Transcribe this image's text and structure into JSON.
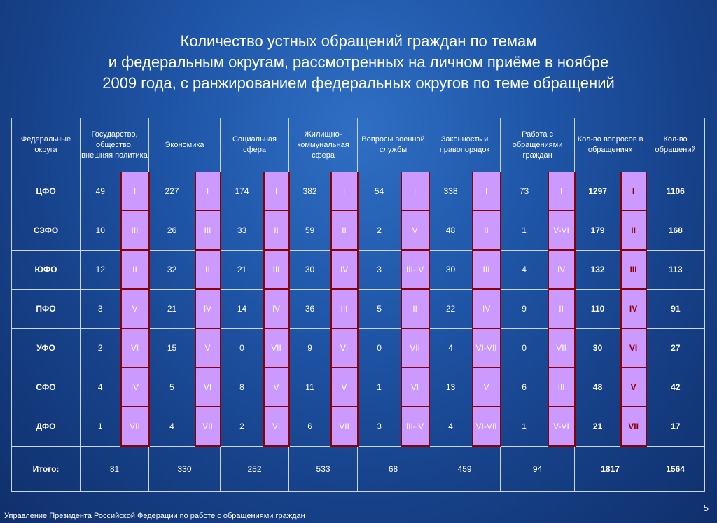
{
  "title": {
    "line1": "Количество устных обращений граждан по темам",
    "line2": "и федеральным округам, рассмотренных на личном приёме в ноябре",
    "line3": "2009 года, с ранжированием федеральных округов по теме обращений"
  },
  "headers": {
    "districts": "Федеральные округа",
    "state": "Государство, общество, внешняя политика",
    "economy": "Экономика",
    "social": "Социальная сфера",
    "housing": "Жилищно-коммунальная сфера",
    "military": "Вопросы военной службы",
    "law": "Законность и правопорядок",
    "work": "Работа с обращениями граждан",
    "questions": "Кол-во вопросов в обращениях",
    "appeals": "Кол-во обращений"
  },
  "rows": [
    {
      "district": "ЦФО",
      "c1": "49",
      "r1": "I",
      "c2": "227",
      "r2": "I",
      "c3": "174",
      "r3": "I",
      "c4": "382",
      "r4": "I",
      "c5": "54",
      "r5": "I",
      "c6": "338",
      "r6": "I",
      "c7": "73",
      "r7": "I",
      "q": "1297",
      "qr": "I",
      "a": "1106"
    },
    {
      "district": "СЗФО",
      "c1": "10",
      "r1": "III",
      "c2": "26",
      "r2": "III",
      "c3": "33",
      "r3": "II",
      "c4": "59",
      "r4": "II",
      "c5": "2",
      "r5": "V",
      "c6": "48",
      "r6": "II",
      "c7": "1",
      "r7": "V-VI",
      "q": "179",
      "qr": "II",
      "a": "168"
    },
    {
      "district": "ЮФО",
      "c1": "12",
      "r1": "II",
      "c2": "32",
      "r2": "II",
      "c3": "21",
      "r3": "III",
      "c4": "30",
      "r4": "IV",
      "c5": "3",
      "r5": "III-IV",
      "c6": "30",
      "r6": "III",
      "c7": "4",
      "r7": "IV",
      "q": "132",
      "qr": "III",
      "a": "113"
    },
    {
      "district": "ПФО",
      "c1": "3",
      "r1": "V",
      "c2": "21",
      "r2": "IV",
      "c3": "14",
      "r3": "IV",
      "c4": "36",
      "r4": "III",
      "c5": "5",
      "r5": "II",
      "c6": "22",
      "r6": "IV",
      "c7": "9",
      "r7": "II",
      "q": "110",
      "qr": "IV",
      "a": "91"
    },
    {
      "district": "УФО",
      "c1": "2",
      "r1": "VI",
      "c2": "15",
      "r2": "V",
      "c3": "0",
      "r3": "VII",
      "c4": "9",
      "r4": "VI",
      "c5": "0",
      "r5": "VII",
      "c6": "4",
      "r6": "VI-VII",
      "c7": "0",
      "r7": "VII",
      "q": "30",
      "qr": "VI",
      "a": "27"
    },
    {
      "district": "СФО",
      "c1": "4",
      "r1": "IV",
      "c2": "5",
      "r2": "VI",
      "c3": "8",
      "r3": "V",
      "c4": "11",
      "r4": "V",
      "c5": "1",
      "r5": "VI",
      "c6": "13",
      "r6": "V",
      "c7": "6",
      "r7": "III",
      "q": "48",
      "qr": "V",
      "a": "42"
    },
    {
      "district": "ДФО",
      "c1": "1",
      "r1": "VII",
      "c2": "4",
      "r2": "VII",
      "c3": "2",
      "r3": "VI",
      "c4": "6",
      "r4": "VII",
      "c5": "3",
      "r5": "III-IV",
      "c6": "4",
      "r6": "VI-VII",
      "c7": "1",
      "r7": "V-VI",
      "q": "21",
      "qr": "VII",
      "a": "17"
    }
  ],
  "totals": {
    "label": "Итого:",
    "t1": "81",
    "t2": "330",
    "t3": "252",
    "t4": "533",
    "t5": "68",
    "t6": "459",
    "t7": "94",
    "questions": "1817",
    "appeals": "1564"
  },
  "footer": "Управление Президента Российской Федерации по работе с обращениями граждан",
  "page_number": "5",
  "colors": {
    "rank_cell": "#cc99ff",
    "rank_border": "#8b0000",
    "background": "#1f56a8"
  }
}
